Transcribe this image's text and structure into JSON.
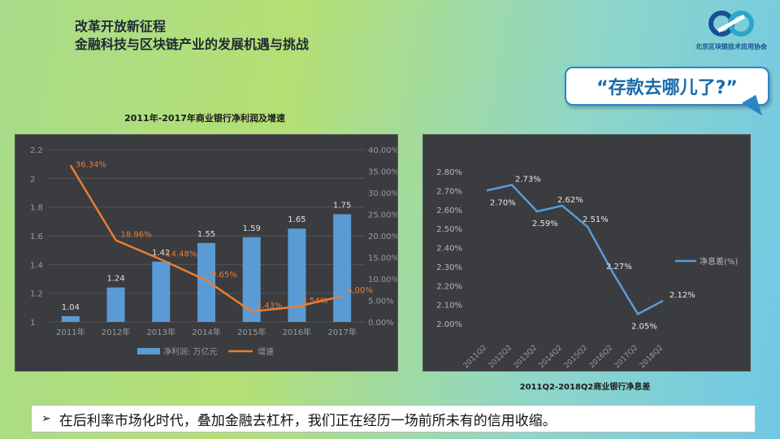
{
  "header": {
    "line1": "改革开放新征程",
    "line2": "金融科技与区块链产业的发展机遇与挑战"
  },
  "logo": {
    "text": "北京区块链技术应用协会",
    "icon": "infinity-link-icon",
    "color": "#1b4f93"
  },
  "callout": {
    "text": "“存款去哪儿了?”"
  },
  "chart1_title": "2011年-2017年商业银行净利润及增速",
  "chart2_title": "2011Q2-2018Q2商业银行净息差",
  "bottom": {
    "bullet_icon": "arrow-bullet-icon",
    "text": "在后利率市场化时代，叠加金融去杠杆，我们正在经历一场前所未有的信用收缩。"
  },
  "chart_data": [
    {
      "type": "bar",
      "title": "2011年-2017年商业银行净利润及增速",
      "categories": [
        "2011年",
        "2012年",
        "2013年",
        "2014年",
        "2015年",
        "2016年",
        "2017年"
      ],
      "series": [
        {
          "name": "净利润: 万亿元",
          "type": "bar",
          "values": [
            1.04,
            1.24,
            1.42,
            1.55,
            1.59,
            1.65,
            1.75
          ],
          "color": "#5b9bd5",
          "labels": [
            "1.04",
            "1.24",
            "1.42",
            "1.55",
            "1.59",
            "1.65",
            "1.75"
          ]
        },
        {
          "name": "增速",
          "type": "line",
          "axis": "right",
          "values": [
            36.34,
            18.96,
            14.48,
            9.65,
            2.43,
            3.54,
            6.0
          ],
          "color": "#ed7d31",
          "labels": [
            "36.34%",
            "18.96%",
            "14.48%",
            "9.65%",
            "2.43%",
            "3.54%",
            "6.00%"
          ]
        }
      ],
      "ylim": [
        1,
        2.2
      ],
      "yticks": [
        "1",
        "1.2",
        "1.4",
        "1.6",
        "1.8",
        "2",
        "2.2"
      ],
      "y2lim": [
        0,
        40
      ],
      "y2ticks": [
        "0.00%",
        "5.00%",
        "10.00%",
        "15.00%",
        "20.00%",
        "25.00%",
        "30.00%",
        "35.00%",
        "40.00%"
      ],
      "grid": true,
      "legend_position": "bottom"
    },
    {
      "type": "line",
      "title": "2011Q2-2018Q2商业银行净息差",
      "categories": [
        "2011Q2",
        "2012Q2",
        "2013Q2",
        "2014Q2",
        "2015Q2",
        "2016Q2",
        "2017Q2",
        "2018Q2"
      ],
      "points": [
        {
          "x": "2011Q2",
          "y": 2.7
        },
        {
          "x": "2012Q2",
          "y": 2.73
        },
        {
          "x": "2013Q2",
          "y": 2.59
        },
        {
          "x": "2014Q2",
          "y": 2.62
        },
        {
          "x": "2015Q2",
          "y": 2.51
        },
        {
          "x": "2016Q2",
          "y": 2.27
        },
        {
          "x": "2017Q2",
          "y": 2.05
        },
        {
          "x": "2018Q2",
          "y": 2.12
        }
      ],
      "labels": [
        "2.70%",
        "2.73%",
        "2.59%",
        "2.62%",
        "2.51%",
        "2.27%",
        "2.05%",
        "2.12%"
      ],
      "series_name": "净息差(%)",
      "ylim": [
        2.0,
        2.8
      ],
      "yticks": [
        "2.00%",
        "2.10%",
        "2.20%",
        "2.30%",
        "2.40%",
        "2.50%",
        "2.60%",
        "2.70%",
        "2.80%"
      ],
      "color": "#5b9bd5",
      "grid": false,
      "legend_position": "right"
    }
  ]
}
